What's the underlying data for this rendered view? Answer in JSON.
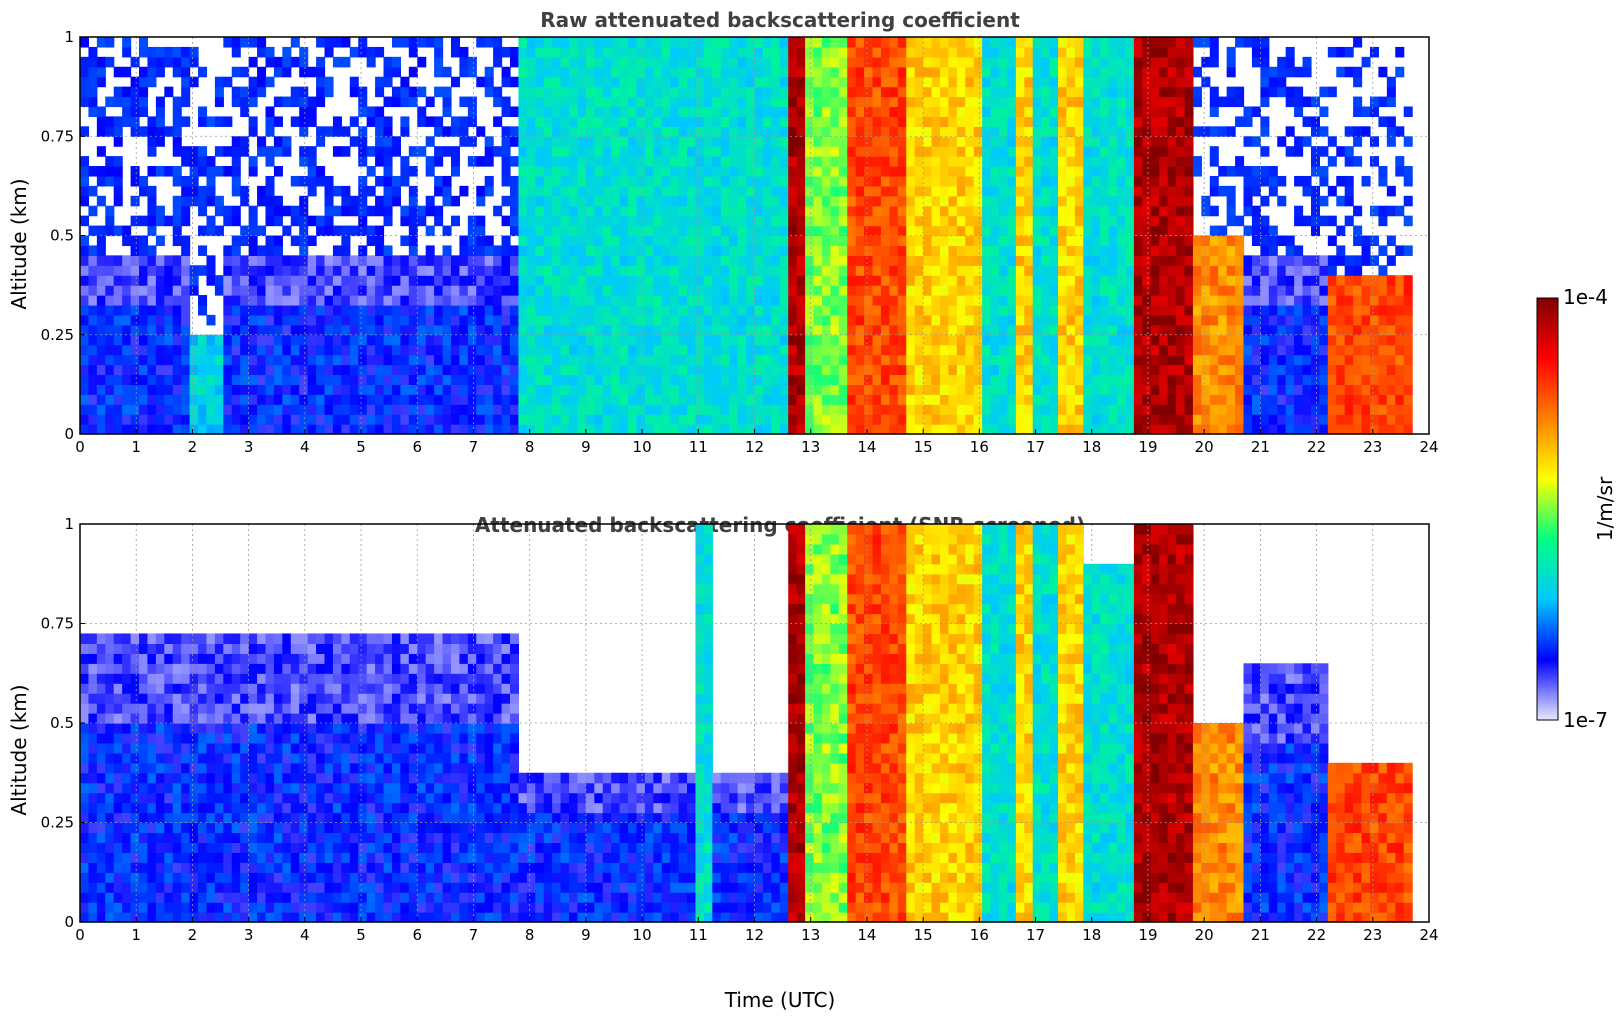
{
  "chart_data": [
    {
      "type": "heatmap",
      "title": "Raw attenuated backscattering coefficient",
      "xlabel": "",
      "ylabel": "Altitude (km)",
      "xlim": [
        0,
        24
      ],
      "ylim": [
        0,
        1
      ],
      "xticks": [
        "0",
        "1",
        "2",
        "3",
        "4",
        "5",
        "6",
        "7",
        "8",
        "9",
        "10",
        "11",
        "12",
        "13",
        "14",
        "15",
        "16",
        "17",
        "18",
        "19",
        "20",
        "21",
        "22",
        "23",
        "24"
      ],
      "yticks": [
        "0",
        "0.25",
        "0.5",
        "0.75",
        "1"
      ],
      "grid": true,
      "value_scale": "log",
      "screened": false,
      "profiles": [
        {
          "t": [
            0.0,
            7.8
          ],
          "level": "low",
          "top": 0.45,
          "noise": "blue speckle"
        },
        {
          "t": [
            1.9,
            2.6
          ],
          "level": "plume",
          "top": 0.25
        },
        {
          "t": [
            7.8,
            12.6
          ],
          "level": "low-mid",
          "top": 1.0,
          "noise": "cyan speckle"
        },
        {
          "t": [
            12.6,
            12.95
          ],
          "level": "very high",
          "top": 1.0
        },
        {
          "t": [
            12.95,
            13.6
          ],
          "level": "mid",
          "top": 1.0
        },
        {
          "t": [
            13.6,
            14.7
          ],
          "level": "high",
          "top": 1.0
        },
        {
          "t": [
            14.7,
            16.0
          ],
          "level": "mid-high",
          "top": 1.0
        },
        {
          "t": [
            16.0,
            16.6
          ],
          "level": "low-mid",
          "top": 1.0
        },
        {
          "t": [
            16.6,
            17.0
          ],
          "level": "mid-high",
          "top": 1.0
        },
        {
          "t": [
            17.0,
            17.4
          ],
          "level": "low-mid",
          "top": 1.0
        },
        {
          "t": [
            17.4,
            17.8
          ],
          "level": "mid-high",
          "top": 1.0
        },
        {
          "t": [
            17.8,
            18.8
          ],
          "level": "low-mid",
          "top": 1.0
        },
        {
          "t": [
            18.8,
            19.8
          ],
          "level": "very high",
          "top": 1.0
        },
        {
          "t": [
            19.8,
            20.7
          ],
          "level": "mixed",
          "top": 0.5
        },
        {
          "t": [
            20.7,
            22.2
          ],
          "level": "low",
          "top": 0.45
        },
        {
          "t": [
            22.2,
            23.7
          ],
          "level": "high",
          "top": 0.4
        }
      ]
    },
    {
      "type": "heatmap",
      "title": "Attenuated backscattering coefficient (SNR-screened)",
      "xlabel": "Time (UTC)",
      "ylabel": "Altitude (km)",
      "xlim": [
        0,
        24
      ],
      "ylim": [
        0,
        1
      ],
      "xticks": [
        "0",
        "1",
        "2",
        "3",
        "4",
        "5",
        "6",
        "7",
        "8",
        "9",
        "10",
        "11",
        "12",
        "13",
        "14",
        "15",
        "16",
        "17",
        "18",
        "19",
        "20",
        "21",
        "22",
        "23",
        "24"
      ],
      "yticks": [
        "0",
        "0.25",
        "0.5",
        "0.75",
        "1"
      ],
      "grid": true,
      "value_scale": "log",
      "screened": true,
      "profiles": [
        {
          "t": [
            0.0,
            7.8
          ],
          "level": "low",
          "top": 0.72
        },
        {
          "t": [
            7.8,
            12.6
          ],
          "level": "low",
          "top": 0.38
        },
        {
          "t": [
            11.0,
            11.2
          ],
          "level": "low-mid",
          "top": 1.0
        },
        {
          "t": [
            12.6,
            12.95
          ],
          "level": "very high",
          "top": 1.0
        },
        {
          "t": [
            12.95,
            13.6
          ],
          "level": "mid",
          "top": 1.0
        },
        {
          "t": [
            13.6,
            14.7
          ],
          "level": "high",
          "top": 1.0
        },
        {
          "t": [
            14.7,
            16.0
          ],
          "level": "mid-high",
          "top": 1.0
        },
        {
          "t": [
            16.0,
            16.6
          ],
          "level": "low-mid",
          "top": 1.0
        },
        {
          "t": [
            16.6,
            17.0
          ],
          "level": "mid-high",
          "top": 1.0
        },
        {
          "t": [
            17.0,
            17.4
          ],
          "level": "low-mid",
          "top": 1.0
        },
        {
          "t": [
            17.4,
            17.8
          ],
          "level": "mid-high",
          "top": 1.0
        },
        {
          "t": [
            17.8,
            18.8
          ],
          "level": "low-mid",
          "top": 0.9
        },
        {
          "t": [
            18.8,
            19.8
          ],
          "level": "very high",
          "top": 1.0
        },
        {
          "t": [
            19.8,
            20.7
          ],
          "level": "mixed",
          "top": 0.5
        },
        {
          "t": [
            20.7,
            22.2
          ],
          "level": "low",
          "top": 0.65
        },
        {
          "t": [
            22.2,
            23.7
          ],
          "level": "high",
          "top": 0.4
        }
      ]
    }
  ],
  "colorbar": {
    "label": "1/m/sr",
    "max_label": "1e-4",
    "min_label": "1e-7",
    "min": 1e-07,
    "max": 0.0001,
    "scale": "log",
    "colormap": "jet",
    "colors": [
      "#e8e8ff",
      "#0000ff",
      "#00c8ff",
      "#00ff80",
      "#ffff00",
      "#ff8000",
      "#ff0000",
      "#800000"
    ]
  }
}
